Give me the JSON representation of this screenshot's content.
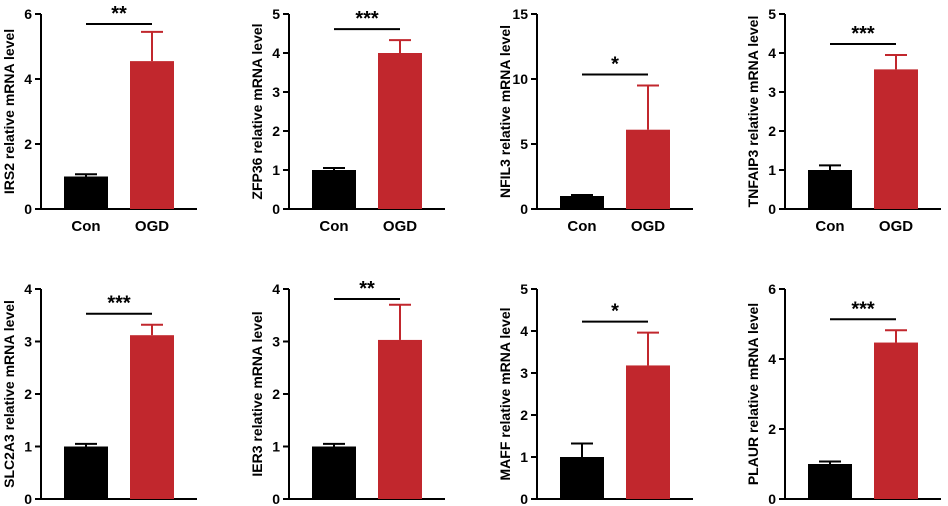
{
  "colors": {
    "con": "#000000",
    "ogd": "#c1272d",
    "axis": "#000000"
  },
  "chart_data": [
    {
      "type": "bar",
      "title": "",
      "ylabel": "IRS2 relative mRNA level",
      "xlabel": "",
      "categories": [
        "Con",
        "OGD"
      ],
      "values": [
        1.0,
        4.55
      ],
      "errors": [
        0.07,
        0.9
      ],
      "ylim": [
        0,
        6
      ],
      "yticks": [
        "0",
        "2",
        "4",
        "6"
      ],
      "significance": "**"
    },
    {
      "type": "bar",
      "title": "",
      "ylabel": "ZFP36 relative mRNA level",
      "xlabel": "",
      "categories": [
        "Con",
        "OGD"
      ],
      "values": [
        1.0,
        4.0
      ],
      "errors": [
        0.05,
        0.33
      ],
      "ylim": [
        0,
        5
      ],
      "yticks": [
        "0",
        "1",
        "2",
        "3",
        "4",
        "5"
      ],
      "significance": "***"
    },
    {
      "type": "bar",
      "title": "",
      "ylabel": "NFIL3 relative mRNA level",
      "xlabel": "",
      "categories": [
        "Con",
        "OGD"
      ],
      "values": [
        1.0,
        6.1
      ],
      "errors": [
        0.08,
        3.4
      ],
      "ylim": [
        0,
        15
      ],
      "yticks": [
        "0",
        "5",
        "10",
        "15"
      ],
      "significance": "*"
    },
    {
      "type": "bar",
      "title": "",
      "ylabel": "TNFAIP3 relative mRNA level",
      "xlabel": "",
      "categories": [
        "Con",
        "OGD"
      ],
      "values": [
        1.0,
        3.58
      ],
      "errors": [
        0.12,
        0.37
      ],
      "ylim": [
        0,
        5
      ],
      "yticks": [
        "0",
        "1",
        "2",
        "3",
        "4",
        "5"
      ],
      "significance": "***"
    },
    {
      "type": "bar",
      "title": "",
      "ylabel": "SLC2A3 relative mRNA level",
      "xlabel": "",
      "categories": [
        "Con",
        "OGD"
      ],
      "values": [
        1.0,
        3.12
      ],
      "errors": [
        0.05,
        0.2
      ],
      "ylim": [
        0,
        4
      ],
      "yticks": [
        "0",
        "1",
        "2",
        "3",
        "4"
      ],
      "significance": "***"
    },
    {
      "type": "bar",
      "title": "",
      "ylabel": "IER3 relative mRNA level",
      "xlabel": "",
      "categories": [
        "Con",
        "OGD"
      ],
      "values": [
        1.0,
        3.03
      ],
      "errors": [
        0.05,
        0.67
      ],
      "ylim": [
        0,
        4
      ],
      "yticks": [
        "0",
        "1",
        "2",
        "3",
        "4"
      ],
      "significance": "**"
    },
    {
      "type": "bar",
      "title": "",
      "ylabel": "MAFF relative mRNA level",
      "xlabel": "",
      "categories": [
        "Con",
        "OGD"
      ],
      "values": [
        1.0,
        3.18
      ],
      "errors": [
        0.32,
        0.78
      ],
      "ylim": [
        0,
        5
      ],
      "yticks": [
        "0",
        "1",
        "2",
        "3",
        "4",
        "5"
      ],
      "significance": "*"
    },
    {
      "type": "bar",
      "title": "",
      "ylabel": "PLAUR relative mRNA level",
      "xlabel": "",
      "categories": [
        "Con",
        "OGD"
      ],
      "values": [
        1.0,
        4.47
      ],
      "errors": [
        0.07,
        0.35
      ],
      "ylim": [
        0,
        6
      ],
      "yticks": [
        "0",
        "2",
        "4",
        "6"
      ],
      "significance": "***"
    }
  ]
}
